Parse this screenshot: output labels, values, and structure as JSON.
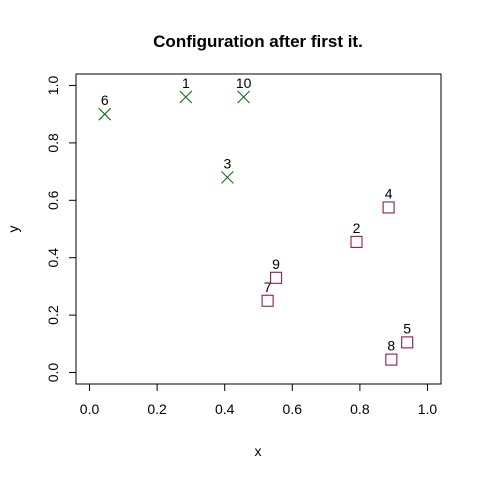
{
  "chart_data": {
    "type": "scatter",
    "title": "Configuration after first it.",
    "xlabel": "x",
    "ylabel": "y",
    "xlim": [
      -0.04,
      1.04
    ],
    "ylim": [
      -0.04,
      1.04
    ],
    "xticks": [
      0.0,
      0.2,
      0.4,
      0.6,
      0.8,
      1.0
    ],
    "yticks": [
      0.0,
      0.2,
      0.4,
      0.6,
      0.8,
      1.0
    ],
    "xtick_labels": [
      "0.0",
      "0.2",
      "0.4",
      "0.6",
      "0.8",
      "1.0"
    ],
    "ytick_labels": [
      "0.0",
      "0.2",
      "0.4",
      "0.6",
      "0.8",
      "1.0"
    ],
    "grid": false,
    "colors": {
      "cross": "#1a6b1a",
      "square": "#8b1a5a"
    },
    "series": [
      {
        "marker": "cross",
        "points": [
          {
            "label": "1",
            "x": 0.285,
            "y": 0.96
          },
          {
            "label": "3",
            "x": 0.408,
            "y": 0.68
          },
          {
            "label": "6",
            "x": 0.045,
            "y": 0.9
          },
          {
            "label": "10",
            "x": 0.456,
            "y": 0.96
          }
        ]
      },
      {
        "marker": "square",
        "points": [
          {
            "label": "2",
            "x": 0.79,
            "y": 0.455
          },
          {
            "label": "4",
            "x": 0.885,
            "y": 0.575
          },
          {
            "label": "5",
            "x": 0.94,
            "y": 0.105
          },
          {
            "label": "7",
            "x": 0.527,
            "y": 0.25
          },
          {
            "label": "8",
            "x": 0.893,
            "y": 0.045
          },
          {
            "label": "9",
            "x": 0.552,
            "y": 0.33
          }
        ]
      }
    ]
  }
}
